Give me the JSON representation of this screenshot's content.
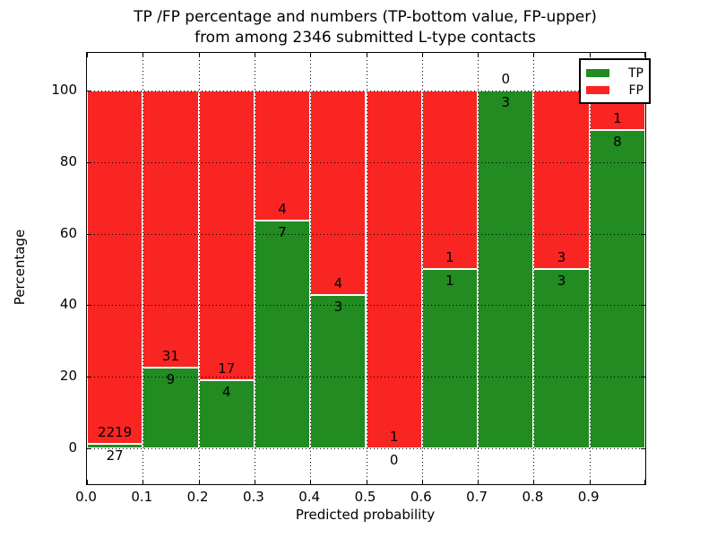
{
  "title": {
    "line1": "TP /FP percentage and numbers (TP-bottom value, FP-upper)",
    "line2": "from among 2346 submitted L-type contacts"
  },
  "chart_data": {
    "type": "bar",
    "stacked": true,
    "title": "TP /FP percentage and numbers (TP-bottom value, FP-upper) from among 2346 submitted L-type contacts",
    "xlabel": "Predicted probability",
    "ylabel": "Percentage",
    "x_tick_labels": [
      "0.0",
      "0.1",
      "0.2",
      "0.3",
      "0.4",
      "0.5",
      "0.6",
      "0.7",
      "0.8",
      "0.9"
    ],
    "y_ticks": [
      0,
      20,
      40,
      60,
      80,
      100
    ],
    "y_tick_labels": [
      "0",
      "20",
      "40",
      "60",
      "80",
      "100"
    ],
    "xlim": [
      0.0,
      1.0
    ],
    "ylim": [
      -10,
      110.5
    ],
    "bin_width": 0.1,
    "grid": true,
    "note": "Each bar stacks TP% (bottom, green) and FP% (top, red) to 100%; numbers shown are raw counts per bin (TP below boundary, FP above).",
    "bins": [
      {
        "x0": 0.0,
        "x1": 0.1,
        "tp": 27,
        "fp": 2219
      },
      {
        "x0": 0.1,
        "x1": 0.2,
        "tp": 9,
        "fp": 31
      },
      {
        "x0": 0.2,
        "x1": 0.3,
        "tp": 4,
        "fp": 17
      },
      {
        "x0": 0.3,
        "x1": 0.4,
        "tp": 7,
        "fp": 4
      },
      {
        "x0": 0.4,
        "x1": 0.5,
        "tp": 3,
        "fp": 4
      },
      {
        "x0": 0.5,
        "x1": 0.6,
        "tp": 0,
        "fp": 1
      },
      {
        "x0": 0.6,
        "x1": 0.7,
        "tp": 1,
        "fp": 1
      },
      {
        "x0": 0.7,
        "x1": 0.8,
        "tp": 3,
        "fp": 0
      },
      {
        "x0": 0.8,
        "x1": 0.9,
        "tp": 3,
        "fp": 3
      },
      {
        "x0": 0.9,
        "x1": 1.0,
        "tp": 8,
        "fp": 1
      }
    ],
    "colors": {
      "tp": "#228b22",
      "fp": "#f92522"
    },
    "legend": {
      "position": "upper right",
      "entries": [
        {
          "label": "TP",
          "color": "#228b22"
        },
        {
          "label": "FP",
          "color": "#f92522"
        }
      ]
    }
  }
}
